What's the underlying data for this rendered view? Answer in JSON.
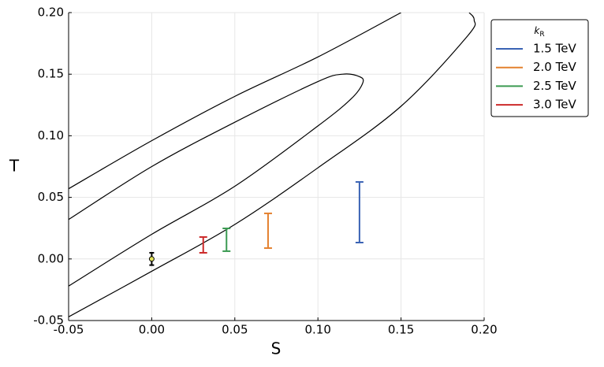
{
  "chart_data": {
    "type": "errorbar",
    "xlabel": "S",
    "ylabel": "T",
    "xlim": [
      -0.05,
      0.2
    ],
    "ylim": [
      -0.05,
      0.2
    ],
    "xticks": [
      {
        "value": -0.05,
        "label": "-0.05"
      },
      {
        "value": 0,
        "label": "0.00"
      },
      {
        "value": 0.05,
        "label": "0.05"
      },
      {
        "value": 0.1,
        "label": "0.10"
      },
      {
        "value": 0.15,
        "label": "0.15"
      },
      {
        "value": 0.2,
        "label": "0.20"
      }
    ],
    "yticks": [
      {
        "value": -0.05,
        "label": "-0.05"
      },
      {
        "value": 0,
        "label": "0.00"
      },
      {
        "value": 0.05,
        "label": "0.05"
      },
      {
        "value": 0.1,
        "label": "0.10"
      },
      {
        "value": 0.15,
        "label": "0.15"
      },
      {
        "value": 0.2,
        "label": "0.20"
      }
    ],
    "grid": true,
    "legend_title": "k",
    "legend_title_subscript": "R",
    "legend_position": "outside-top-right",
    "series": [
      {
        "name": "1.5 TeV",
        "color": "#3a63b4",
        "x": [
          0.125
        ],
        "low": [
          0.0133
        ],
        "high": [
          0.0625
        ]
      },
      {
        "name": "2.0 TeV",
        "color": "#e4812f",
        "x": [
          0.07
        ],
        "low": [
          0.0088
        ],
        "high": [
          0.037
        ]
      },
      {
        "name": "2.5 TeV",
        "color": "#3b9a52",
        "x": [
          0.045
        ],
        "low": [
          0.0063
        ],
        "high": [
          0.0248
        ]
      },
      {
        "name": "3.0 TeV",
        "color": "#cc2a2a",
        "x": [
          0.031
        ],
        "low": [
          0.005
        ],
        "high": [
          0.0178
        ]
      }
    ],
    "reference_point": {
      "x": 0,
      "y": 0,
      "error": 0.005,
      "color": "#e3e35a"
    },
    "contours": [
      {
        "color": "#000000",
        "x": [
          -0.05,
          0,
          0.05,
          0.1,
          0.115,
          0.125,
          0.127,
          0.12,
          0.1,
          0.05,
          0,
          -0.05
        ],
        "y": [
          0.032,
          0.075,
          0.111,
          0.144,
          0.15,
          0.148,
          0.143,
          0.13,
          0.108,
          0.059,
          0.02,
          -0.022
        ]
      },
      {
        "color": "#000000",
        "x": [
          -0.05,
          0,
          0.05,
          0.1,
          0.15,
          null,
          0.191,
          0.194,
          0.19,
          0.15,
          0.1,
          0.05,
          0,
          -0.05
        ],
        "y": [
          0.057,
          0.096,
          0.132,
          0.164,
          0.2,
          null,
          0.2,
          0.194,
          0.181,
          0.124,
          0.074,
          0.028,
          -0.01,
          -0.047
        ]
      }
    ]
  }
}
